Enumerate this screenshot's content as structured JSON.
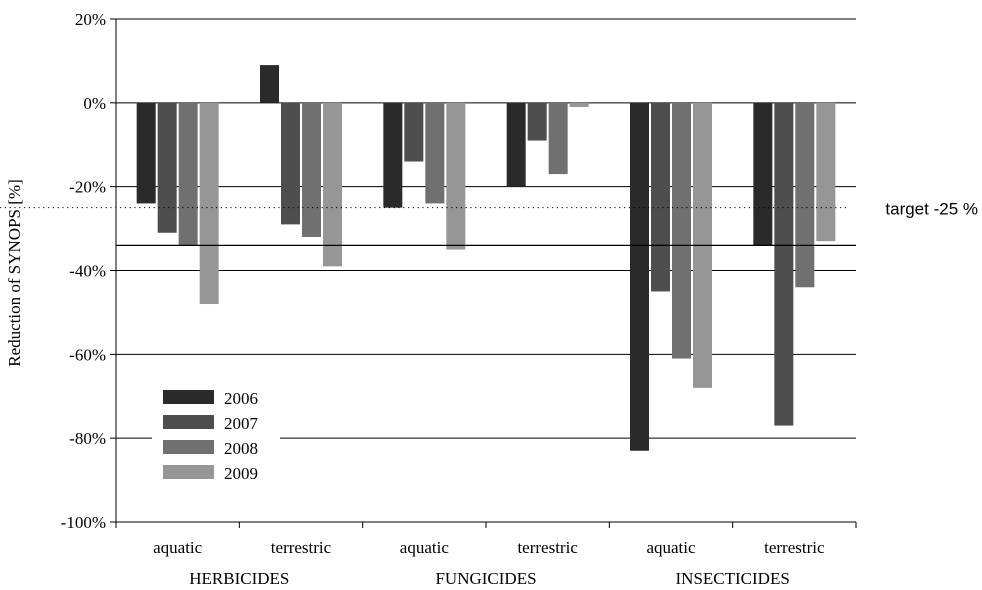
{
  "chart_data": {
    "type": "bar",
    "ylabel": "Reduction of SYNOPS [%]",
    "ylim": [
      -100,
      20
    ],
    "y_ticks": [
      20,
      0,
      -20,
      -40,
      -60,
      -80,
      -100
    ],
    "y_tick_labels": [
      "20%",
      "0%",
      "-20%",
      "-40%",
      "-60%",
      "-80%",
      "-100%"
    ],
    "grid": true,
    "legend_position": "bottom-left",
    "categories": [
      "aquatic",
      "terrestric",
      "aquatic",
      "terrestric",
      "aquatic",
      "terrestric"
    ],
    "groups": [
      {
        "label": "HERBICIDES",
        "categories": [
          0,
          1
        ]
      },
      {
        "label": "FUNGICIDES",
        "categories": [
          2,
          3
        ]
      },
      {
        "label": "INSECTICIDES",
        "categories": [
          4,
          5
        ]
      }
    ],
    "series": [
      {
        "name": "2006",
        "color": "#2a2a2a",
        "values": [
          -24,
          9,
          -25,
          -20,
          -83,
          -34
        ]
      },
      {
        "name": "2007",
        "color": "#4e4e4e",
        "values": [
          -31,
          -29,
          -14,
          -9,
          -45,
          -77
        ]
      },
      {
        "name": "2008",
        "color": "#707070",
        "values": [
          -34,
          -32,
          -24,
          -17,
          -61,
          -44
        ]
      },
      {
        "name": "2009",
        "color": "#969696",
        "values": [
          -48,
          -39,
          -35,
          -1,
          -68,
          -33
        ]
      }
    ],
    "reference_lines": [
      {
        "value": -25,
        "style": "dotted",
        "label": "target -25 %"
      },
      {
        "value": -34,
        "style": "solid",
        "label": ""
      }
    ]
  }
}
